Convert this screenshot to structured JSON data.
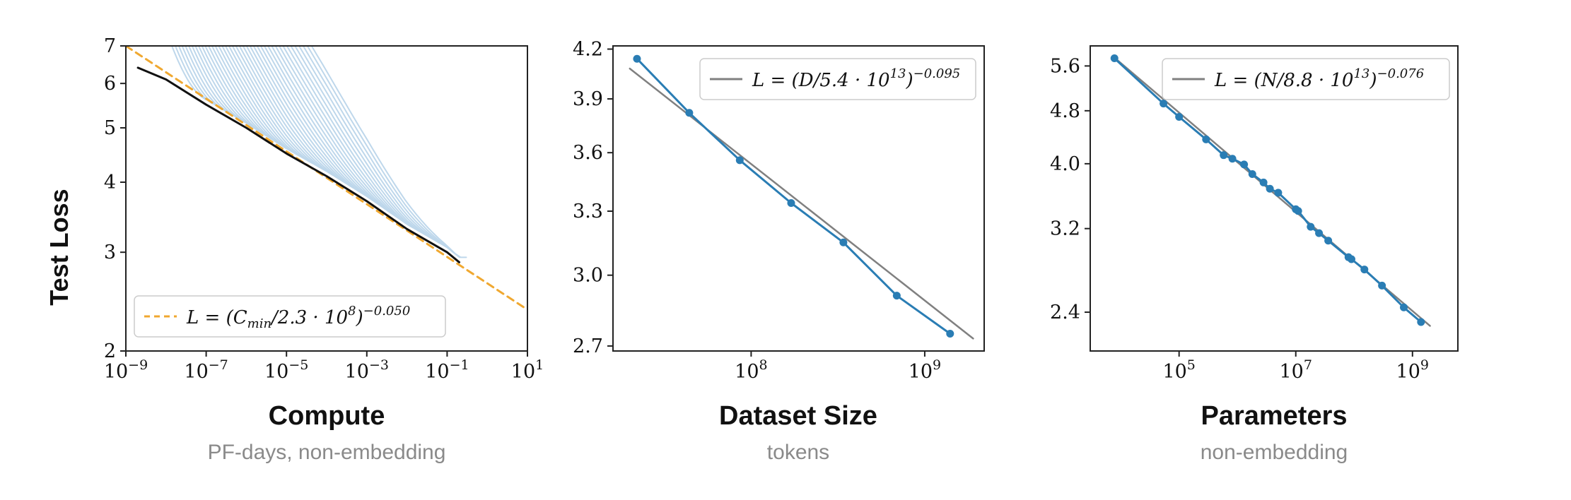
{
  "y_axis_label": "Test Loss",
  "chart_data": [
    {
      "type": "line",
      "title": "Compute",
      "subtitle": "PF-days, non-embedding",
      "xlabel": "Compute",
      "ylabel": "Test Loss",
      "xscale": "log",
      "yscale": "log",
      "xlim": [
        1e-09,
        10
      ],
      "ylim": [
        2,
        7
      ],
      "x_tick_labels": [
        {
          "value": 1e-09,
          "base": "10",
          "exp": "−9"
        },
        {
          "value": 1e-07,
          "base": "10",
          "exp": "−7"
        },
        {
          "value": 1e-05,
          "base": "10",
          "exp": "−5"
        },
        {
          "value": 0.001,
          "base": "10",
          "exp": "−3"
        },
        {
          "value": 0.1,
          "base": "10",
          "exp": "−1"
        },
        {
          "value": 10,
          "base": "10",
          "exp": "1"
        }
      ],
      "y_ticks": [
        2,
        3,
        4,
        5,
        6,
        7
      ],
      "y_tick_labels": [
        "2",
        "3",
        "4",
        "5",
        "6",
        "7"
      ],
      "legend_position": "bottom-left",
      "legend": {
        "prefix": "L = (C",
        "sub": "min",
        "mid": "/2.3 · 10",
        "sup1": "8",
        "close": ")",
        "sup2": "−0.050"
      },
      "series": [
        {
          "role": "fit",
          "style": "dashed",
          "color": "#f0a830",
          "x": [
            1e-09,
            10
          ],
          "y": [
            7.0,
            2.37
          ]
        },
        {
          "role": "frontier",
          "color": "#111111",
          "x": [
            2e-09,
            1e-08,
            1e-07,
            1e-06,
            1e-05,
            0.0001,
            0.001,
            0.01,
            0.1,
            0.2
          ],
          "y": [
            6.4,
            6.1,
            5.5,
            5.0,
            4.5,
            4.1,
            3.7,
            3.3,
            3.0,
            2.88
          ]
        }
      ],
      "training_curves": {
        "color": "#8ab8dc",
        "count": 40,
        "start_x": [
          1e-09,
          0.3
        ],
        "end_x": [
          1e-07,
          0.3
        ]
      }
    },
    {
      "type": "line",
      "title": "Dataset Size",
      "subtitle": "tokens",
      "xlabel": "Dataset Size",
      "xscale": "log",
      "yscale": "log",
      "xlim": [
        16000000.0,
        2200000000.0
      ],
      "ylim": [
        2.68,
        4.22
      ],
      "x_tick_labels": [
        {
          "value": 100000000.0,
          "base": "10",
          "exp": "8"
        },
        {
          "value": 1000000000.0,
          "base": "10",
          "exp": "9"
        }
      ],
      "y_ticks": [
        2.7,
        3.0,
        3.3,
        3.6,
        3.9,
        4.2
      ],
      "y_tick_labels": [
        "2.7",
        "3.0",
        "3.3",
        "3.6",
        "3.9",
        "4.2"
      ],
      "legend_position": "top-right",
      "legend": {
        "prefix": "L = (D/5.4 · 10",
        "sup1": "13",
        "close": ")",
        "sup2": "−0.095"
      },
      "series": [
        {
          "role": "fit",
          "color": "#808080",
          "x": [
            20000000.0,
            1900000000.0
          ],
          "y": [
            4.08,
            2.73
          ]
        },
        {
          "role": "data",
          "color": "#2a7db4",
          "x": [
            22000000.0,
            44000000.0,
            86000000.0,
            170000000.0,
            340000000.0,
            690000000.0,
            1400000000.0
          ],
          "y": [
            4.14,
            3.82,
            3.56,
            3.34,
            3.15,
            2.91,
            2.75
          ]
        }
      ]
    },
    {
      "type": "line",
      "title": "Parameters",
      "subtitle": "non-embedding",
      "xlabel": "Parameters",
      "xscale": "log",
      "yscale": "log",
      "xlim": [
        3000.0,
        6000000000.0
      ],
      "ylim": [
        2.1,
        6.0
      ],
      "x_tick_labels": [
        {
          "value": 100000.0,
          "base": "10",
          "exp": "5"
        },
        {
          "value": 10000000.0,
          "base": "10",
          "exp": "7"
        },
        {
          "value": 1000000000.0,
          "base": "10",
          "exp": "9"
        }
      ],
      "y_ticks": [
        2.4,
        3.2,
        4.0,
        4.8,
        5.6
      ],
      "y_tick_labels": [
        "2.4",
        "3.2",
        "4.0",
        "4.8",
        "5.6"
      ],
      "legend_position": "top-right",
      "legend": {
        "prefix": "L = (N/8.8 · 10",
        "sup1": "13",
        "close": ")",
        "sup2": "−0.076"
      },
      "series": [
        {
          "role": "fit",
          "color": "#808080",
          "x": [
            8000.0,
            2000000000.0
          ],
          "y": [
            5.75,
            2.29
          ]
        },
        {
          "role": "data",
          "color": "#2a7db4",
          "x": [
            7800.0,
            54000.0,
            100000.0,
            290000.0,
            580000.0,
            820000.0,
            1300000.0,
            1800000.0,
            2800000.0,
            3600000.0,
            5000000.0,
            10000000.0,
            11000000.0,
            18000000.0,
            25000000.0,
            36000000.0,
            80000000.0,
            90000000.0,
            150000000.0,
            300000000.0,
            710000000.0,
            1400000000.0
          ],
          "y": [
            5.75,
            4.92,
            4.7,
            4.35,
            4.12,
            4.07,
            3.99,
            3.86,
            3.75,
            3.67,
            3.62,
            3.42,
            3.4,
            3.22,
            3.15,
            3.07,
            2.9,
            2.88,
            2.78,
            2.63,
            2.44,
            2.32
          ]
        }
      ]
    }
  ]
}
